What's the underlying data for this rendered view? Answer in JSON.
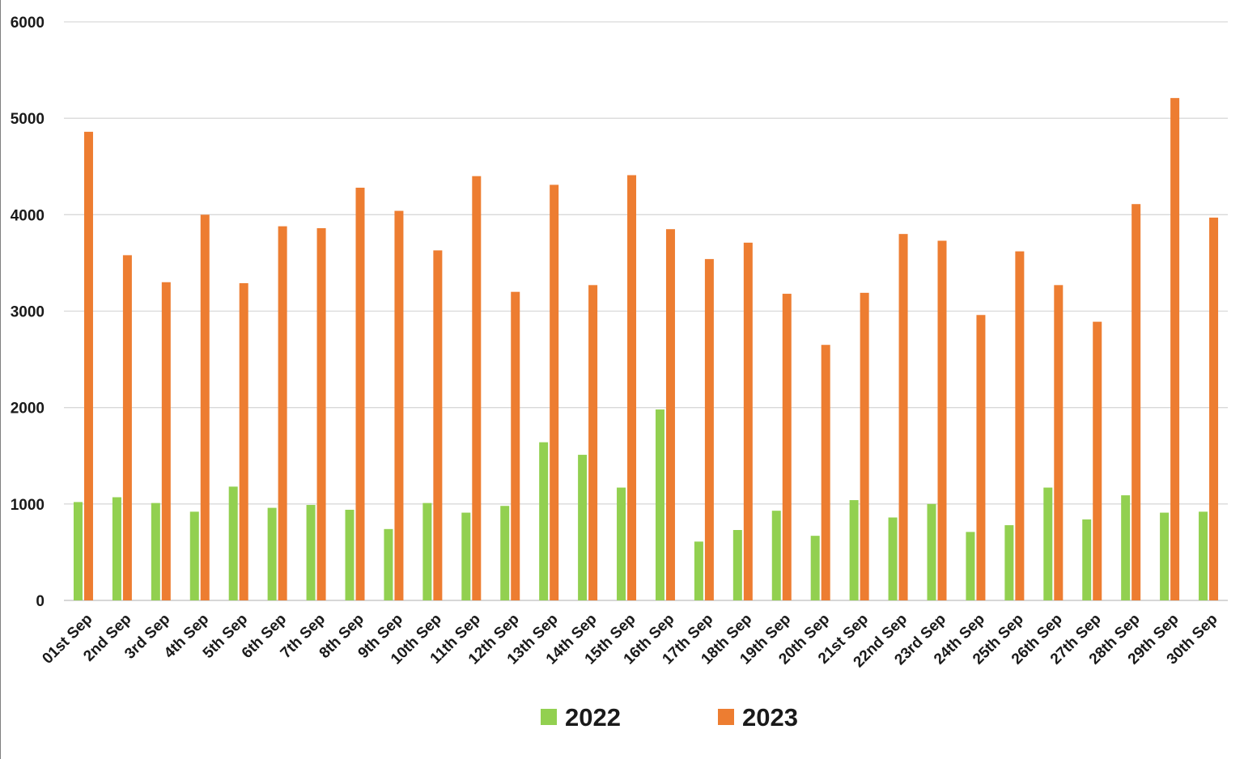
{
  "chart_data": {
    "type": "bar",
    "categories": [
      "01st Sep",
      "2nd Sep",
      "3rd Sep",
      "4th Sep",
      "5th Sep",
      "6th Sep",
      "7th Sep",
      "8th Sep",
      "9th Sep",
      "10th Sep",
      "11th Sep",
      "12th Sep",
      "13th Sep",
      "14th Sep",
      "15th Sep",
      "16th Sep",
      "17th Sep",
      "18th Sep",
      "19th Sep",
      "20th Sep",
      "21st Sep",
      "22nd Sep",
      "23rd Sep",
      "24th Sep",
      "25th Sep",
      "26th Sep",
      "27th Sep",
      "28th Sep",
      "29th Sep",
      "30th Sep"
    ],
    "series": [
      {
        "name": "2022",
        "color": "#92d050",
        "values": [
          1020,
          1070,
          1010,
          920,
          1180,
          960,
          990,
          940,
          740,
          1010,
          910,
          980,
          1640,
          1510,
          1170,
          1980,
          610,
          730,
          930,
          670,
          1040,
          860,
          1000,
          710,
          780,
          1170,
          840,
          1090,
          910,
          920
        ]
      },
      {
        "name": "2023",
        "color": "#ed7d31",
        "values": [
          4860,
          3580,
          3300,
          4000,
          3290,
          3880,
          3860,
          4280,
          4040,
          3630,
          4400,
          3200,
          4310,
          3270,
          4410,
          3850,
          3540,
          3710,
          3180,
          2650,
          3190,
          3800,
          3730,
          2960,
          3620,
          3270,
          2890,
          4110,
          5210,
          3970
        ]
      }
    ],
    "title": "",
    "xlabel": "",
    "ylabel": "",
    "ylim": [
      0,
      6000
    ],
    "yticks": [
      "0",
      "1000",
      "2000",
      "3000",
      "4000",
      "5000",
      "6000"
    ],
    "grid": true,
    "legend_position": "bottom"
  }
}
